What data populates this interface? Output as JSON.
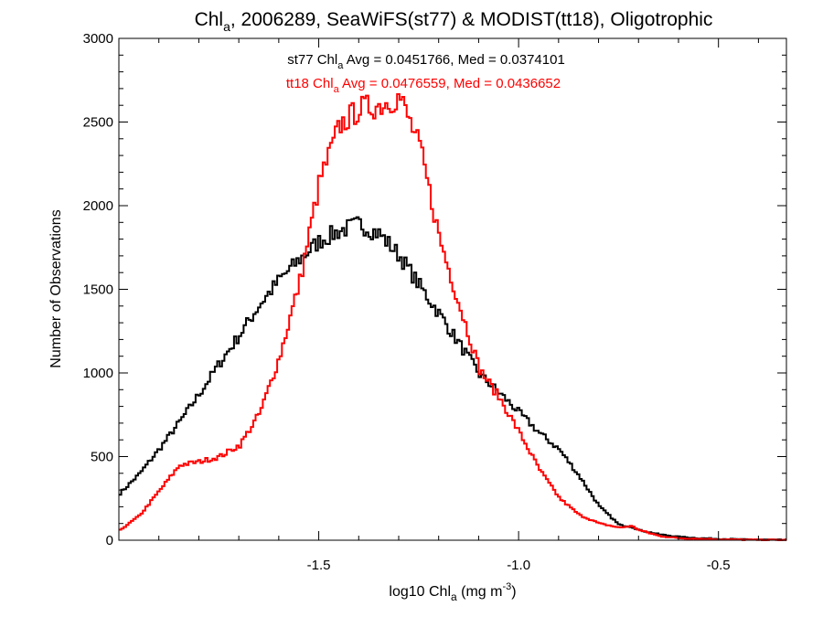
{
  "chart_data": {
    "type": "line",
    "title_parts": [
      "Chl",
      "a",
      ", 2006289, SeaWiFS(st77) & MODIST(tt18), Oligotrophic"
    ],
    "xlabel_parts": [
      "log10 Chl",
      "a",
      " (mg m",
      "-3",
      ")"
    ],
    "ylabel": "Number of Observations",
    "xlim": [
      -2.0,
      -0.33
    ],
    "ylim": [
      0,
      3000
    ],
    "x_ticks": [
      -1.5,
      -1.0,
      -0.5
    ],
    "x_tick_labels": [
      "-1.5",
      "-1.0",
      "-0.5"
    ],
    "y_ticks": [
      0,
      500,
      1000,
      1500,
      2000,
      2500,
      3000
    ],
    "y_tick_labels": [
      "0",
      "500",
      "1000",
      "1500",
      "2000",
      "2500",
      "3000"
    ],
    "grid": false,
    "legend_placement": "top-center",
    "annotations": [
      {
        "series": "st77",
        "parts": [
          "st77 Chl",
          "a",
          " Avg = 0.0451766, Med = 0.0374101"
        ],
        "color": "#000000"
      },
      {
        "series": "tt18",
        "parts": [
          "tt18 Chl",
          "a",
          " Avg = 0.0476559, Med = 0.0436652"
        ],
        "color": "#ff0000"
      }
    ],
    "series": [
      {
        "name": "st77",
        "color": "#000000",
        "x": [
          -2.0,
          -1.95,
          -1.9,
          -1.85,
          -1.8,
          -1.75,
          -1.7,
          -1.65,
          -1.6,
          -1.55,
          -1.5,
          -1.45,
          -1.4,
          -1.35,
          -1.3,
          -1.25,
          -1.2,
          -1.15,
          -1.1,
          -1.05,
          -1.0,
          -0.95,
          -0.9,
          -0.85,
          -0.8,
          -0.75,
          -0.72,
          -0.7,
          -0.65,
          -0.6,
          -0.55,
          -0.5,
          -0.45,
          -0.4,
          -0.35
        ],
        "values": [
          280,
          400,
          550,
          710,
          880,
          1060,
          1230,
          1410,
          1560,
          1680,
          1790,
          1850,
          1890,
          1830,
          1700,
          1520,
          1350,
          1170,
          990,
          880,
          760,
          640,
          540,
          380,
          200,
          90,
          80,
          60,
          35,
          20,
          12,
          8,
          5,
          3,
          2
        ]
      },
      {
        "name": "tt18",
        "color": "#ff0000",
        "x": [
          -2.0,
          -1.95,
          -1.9,
          -1.85,
          -1.8,
          -1.75,
          -1.7,
          -1.65,
          -1.6,
          -1.55,
          -1.5,
          -1.45,
          -1.4,
          -1.35,
          -1.3,
          -1.25,
          -1.2,
          -1.15,
          -1.1,
          -1.05,
          -1.0,
          -0.95,
          -0.9,
          -0.85,
          -0.8,
          -0.75,
          -0.72,
          -0.7,
          -0.65,
          -0.6,
          -0.55,
          -0.5,
          -0.45,
          -0.4,
          -0.35
        ],
        "values": [
          60,
          150,
          300,
          450,
          470,
          500,
          570,
          760,
          1100,
          1550,
          2150,
          2480,
          2580,
          2600,
          2650,
          2350,
          1800,
          1400,
          1020,
          850,
          640,
          420,
          250,
          150,
          100,
          75,
          85,
          60,
          25,
          12,
          8,
          5,
          3,
          2,
          1
        ]
      }
    ]
  }
}
